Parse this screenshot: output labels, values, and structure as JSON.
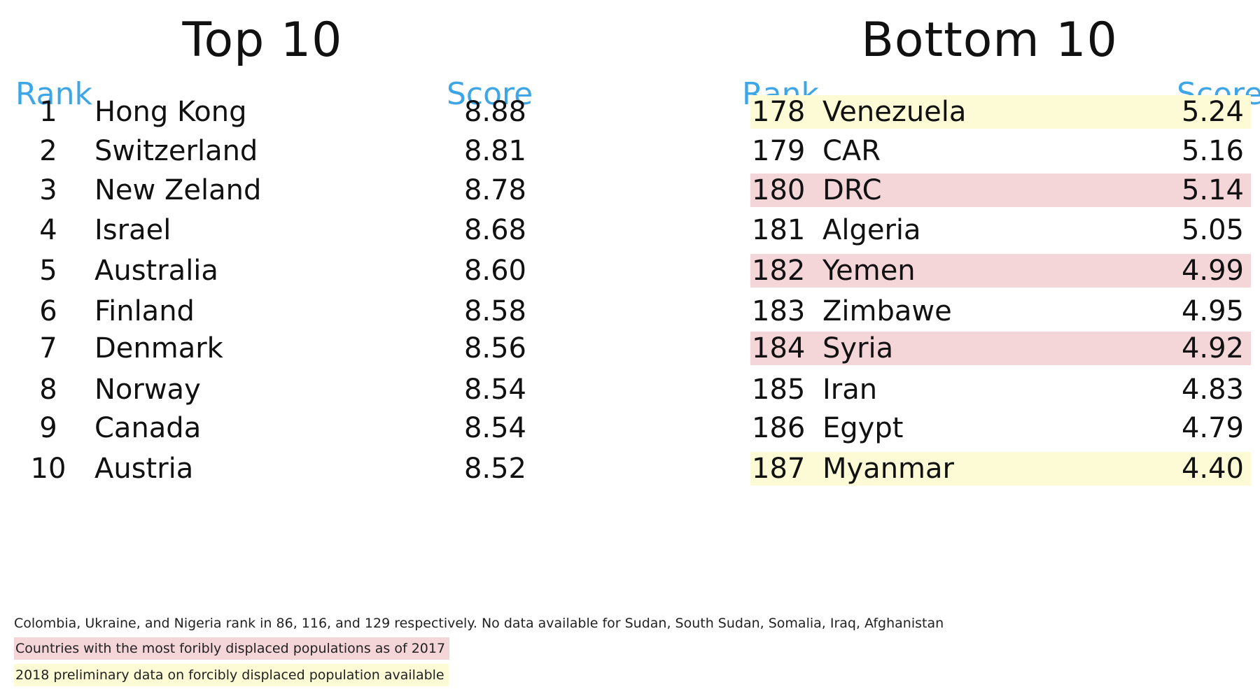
{
  "chart_data": [
    {
      "type": "table",
      "title": "Top 10",
      "columns": [
        "Rank",
        "Score"
      ],
      "rows": [
        {
          "rank": "1",
          "country": "Hong Kong",
          "score": "8.88",
          "highlight": ""
        },
        {
          "rank": "2",
          "country": "Switzerland",
          "score": "8.81",
          "highlight": ""
        },
        {
          "rank": "3",
          "country": "New Zeland",
          "score": "8.78",
          "highlight": ""
        },
        {
          "rank": "4",
          "country": "Israel",
          "score": "8.68",
          "highlight": ""
        },
        {
          "rank": "5",
          "country": "Australia",
          "score": "8.60",
          "highlight": ""
        },
        {
          "rank": "6",
          "country": "Finland",
          "score": "8.58",
          "highlight": ""
        },
        {
          "rank": "7",
          "country": "Denmark",
          "score": "8.56",
          "highlight": ""
        },
        {
          "rank": "8",
          "country": "Norway",
          "score": "8.54",
          "highlight": ""
        },
        {
          "rank": "9",
          "country": "Canada",
          "score": "8.54",
          "highlight": ""
        },
        {
          "rank": "10",
          "country": "Austria",
          "score": "8.52",
          "highlight": ""
        }
      ]
    },
    {
      "type": "table",
      "title": "Bottom 10",
      "columns": [
        "Rank",
        "Score"
      ],
      "rows": [
        {
          "rank": "178",
          "country": "Venezuela",
          "score": "5.24",
          "highlight": "yellow"
        },
        {
          "rank": "179",
          "country": "CAR",
          "score": "5.16",
          "highlight": ""
        },
        {
          "rank": "180",
          "country": "DRC",
          "score": "5.14",
          "highlight": "pink"
        },
        {
          "rank": "181",
          "country": "Algeria",
          "score": "5.05",
          "highlight": ""
        },
        {
          "rank": "182",
          "country": "Yemen",
          "score": "4.99",
          "highlight": "pink"
        },
        {
          "rank": "183",
          "country": "Zimbawe",
          "score": "4.95",
          "highlight": ""
        },
        {
          "rank": "184",
          "country": "Syria",
          "score": "4.92",
          "highlight": "pink"
        },
        {
          "rank": "185",
          "country": "Iran",
          "score": "4.83",
          "highlight": ""
        },
        {
          "rank": "186",
          "country": "Egypt",
          "score": "4.79",
          "highlight": ""
        },
        {
          "rank": "187",
          "country": "Myanmar",
          "score": "4.40",
          "highlight": "yellow"
        }
      ]
    }
  ],
  "footnote": "Colombia, Ukraine, and Nigeria rank in 86, 116, and 129 respectively. No data available for Sudan, South Sudan, Somalia, Iraq, Afghanistan",
  "legend": {
    "pink": "Countries with the most foribly displaced populations as of 2017",
    "yellow": "2018 preliminary data on forcibly displaced population available"
  },
  "colors": {
    "header": "#3ea6e6",
    "pink": "#f4d6d8",
    "yellow": "#fdfad6"
  }
}
